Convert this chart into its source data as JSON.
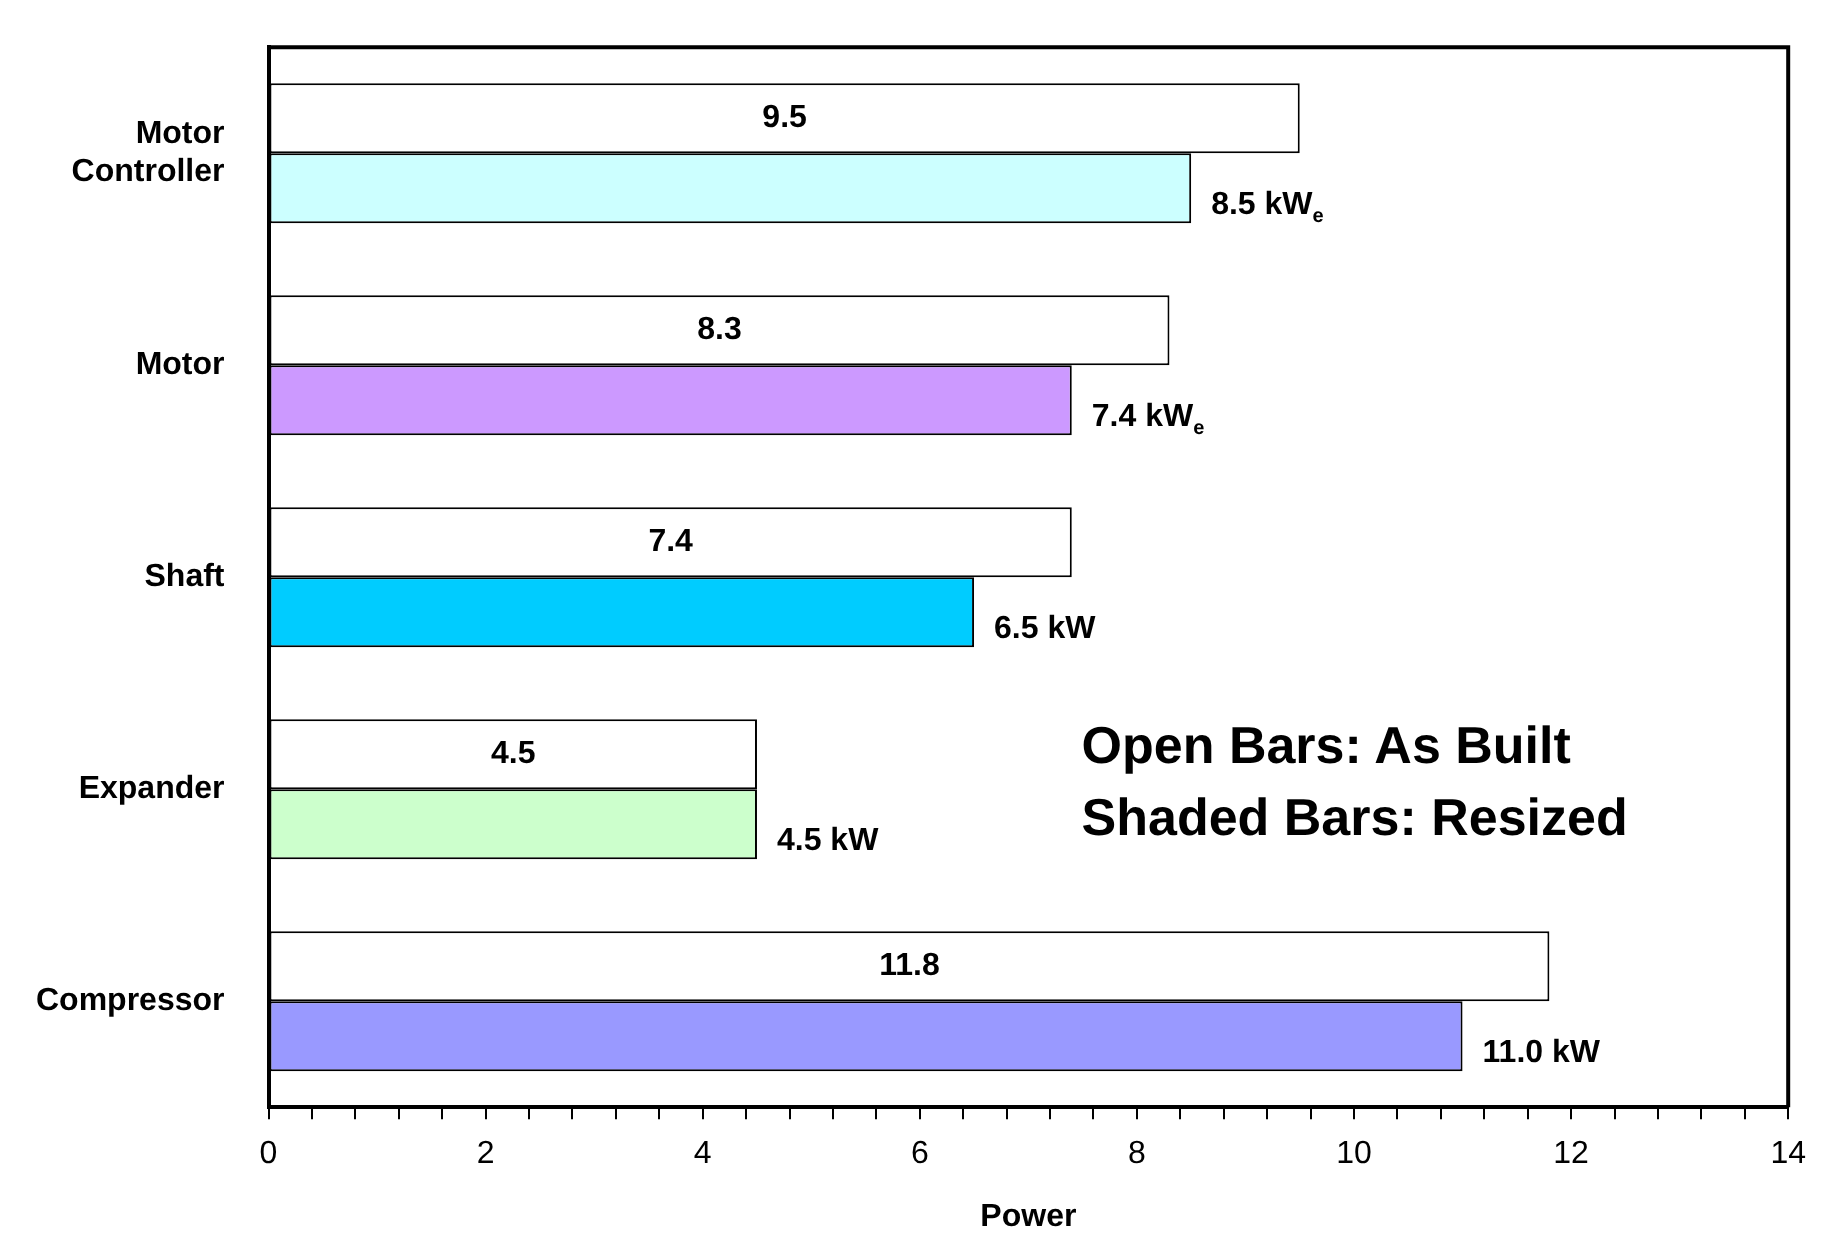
{
  "chart_data": {
    "type": "bar",
    "orientation": "horizontal",
    "xlabel": "Power",
    "categories": [
      "Motor Controller",
      "Motor",
      "Shaft",
      "Expander",
      "Compressor"
    ],
    "series": [
      {
        "color": "#ffffff",
        "values": [
          9.5,
          8.3,
          7.4,
          4.5,
          11.8
        ],
        "value_labels": [
          "9.5",
          "8.3",
          "7.4",
          "4.5",
          "11.8"
        ]
      },
      {
        "colors": [
          "#ccffff",
          "#cc99ff",
          "#00ccff",
          "#ccffcc",
          "#9999ff"
        ],
        "values": [
          8.5,
          7.4,
          6.5,
          4.5,
          11.0
        ],
        "value_labels": [
          "8.5 kW$_{e}$",
          "7.4 kW$_{e}$",
          "6.5 kW",
          "4.5 kW",
          "11.0 kW"
        ]
      }
    ],
    "xlim": [
      0,
      14
    ],
    "xticks": [
      0,
      {
        "value": 0.4,
        "label": null
      },
      {
        "value": 0.8,
        "label": null
      },
      {
        "value": 1.2,
        "label": null
      },
      {
        "value": 1.6,
        "label": null
      },
      2,
      {
        "value": 2.4,
        "label": null
      },
      {
        "value": 2.8,
        "label": null
      },
      {
        "value": 3.2,
        "label": null
      },
      {
        "value": 3.6,
        "label": null
      },
      4,
      {
        "value": 4.4,
        "label": null
      },
      {
        "value": 4.8,
        "label": null
      },
      {
        "value": 5.2,
        "label": null
      },
      {
        "value": 5.6,
        "label": null
      },
      6,
      {
        "value": 6.4,
        "label": null
      },
      {
        "value": 6.8,
        "label": null
      },
      {
        "value": 7.2,
        "label": null
      },
      {
        "value": 7.6,
        "label": null
      },
      8,
      {
        "value": 8.4,
        "label": null
      },
      {
        "value": 8.8,
        "label": null
      },
      {
        "value": 9.2,
        "label": null
      },
      {
        "value": 9.6,
        "label": null
      },
      10,
      {
        "value": 10.4,
        "label": null
      },
      {
        "value": 10.8,
        "label": null
      },
      {
        "value": 11.2,
        "label": null
      },
      {
        "value": 11.6,
        "label": null
      },
      12,
      {
        "value": 12.4,
        "label": null
      },
      {
        "value": 12.8,
        "label": null
      },
      {
        "value": 13.2,
        "label": null
      },
      {
        "value": 13.6,
        "label": null
      },
      14
    ],
    "annotations": [
      "Open Bars: As Built",
      "Shaded Bars: Resized"
    ],
    "grid": false,
    "legend": false
  }
}
